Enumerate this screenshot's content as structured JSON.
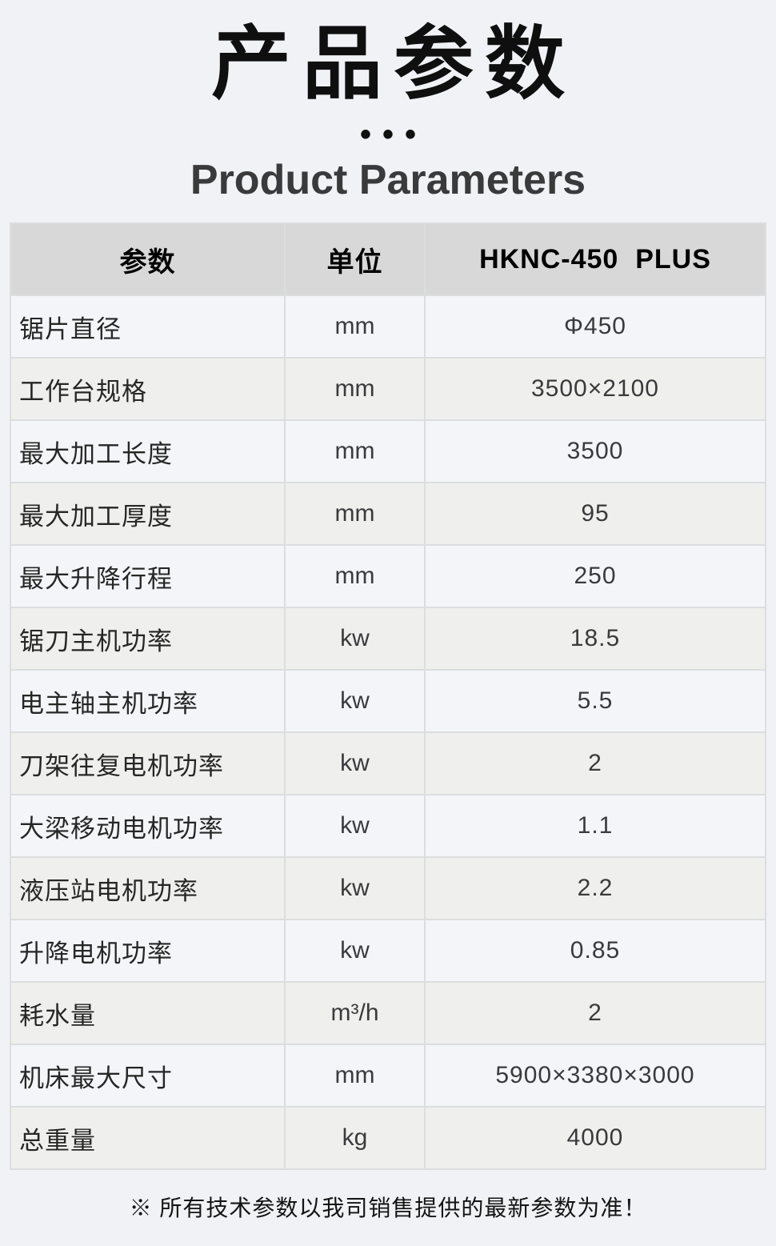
{
  "page": {
    "title_cn": "产品参数",
    "separator_dots": "•••",
    "title_en": "Product Parameters",
    "footnote": "※ 所有技术参数以我司销售提供的最新参数为准！"
  },
  "colors": {
    "page_background": "#f1f2f6",
    "header_row_background": "#d8d8d8",
    "row_odd_background": "#f4f5f9",
    "row_even_background": "#efefee",
    "grid_line": "#dcddde",
    "title_text": "#0f0f0f",
    "subtitle_text": "#3a3a3c",
    "body_text": "#3a3a3c"
  },
  "table": {
    "headers": [
      "参数",
      "单位",
      "HKNC-450  PLUS"
    ],
    "rows": [
      {
        "param": "锯片直径",
        "unit": "mm",
        "value": "Φ450"
      },
      {
        "param": "工作台规格",
        "unit": "mm",
        "value": "3500×2100"
      },
      {
        "param": "最大加工长度",
        "unit": "mm",
        "value": "3500"
      },
      {
        "param": "最大加工厚度",
        "unit": "mm",
        "value": "95"
      },
      {
        "param": "最大升降行程",
        "unit": "mm",
        "value": "250"
      },
      {
        "param": "锯刀主机功率",
        "unit": "kw",
        "value": "18.5"
      },
      {
        "param": "电主轴主机功率",
        "unit": "kw",
        "value": "5.5"
      },
      {
        "param": "刀架往复电机功率",
        "unit": "kw",
        "value": "2"
      },
      {
        "param": "大梁移动电机功率",
        "unit": "kw",
        "value": "1.1"
      },
      {
        "param": "液压站电机功率",
        "unit": "kw",
        "value": "2.2"
      },
      {
        "param": "升降电机功率",
        "unit": "kw",
        "value": "0.85"
      },
      {
        "param": "耗水量",
        "unit": "m³/h",
        "value": "2"
      },
      {
        "param": "机床最大尺寸",
        "unit": "mm",
        "value": "5900×3380×3000"
      },
      {
        "param": "总重量",
        "unit": "kg",
        "value": "4000"
      }
    ]
  }
}
